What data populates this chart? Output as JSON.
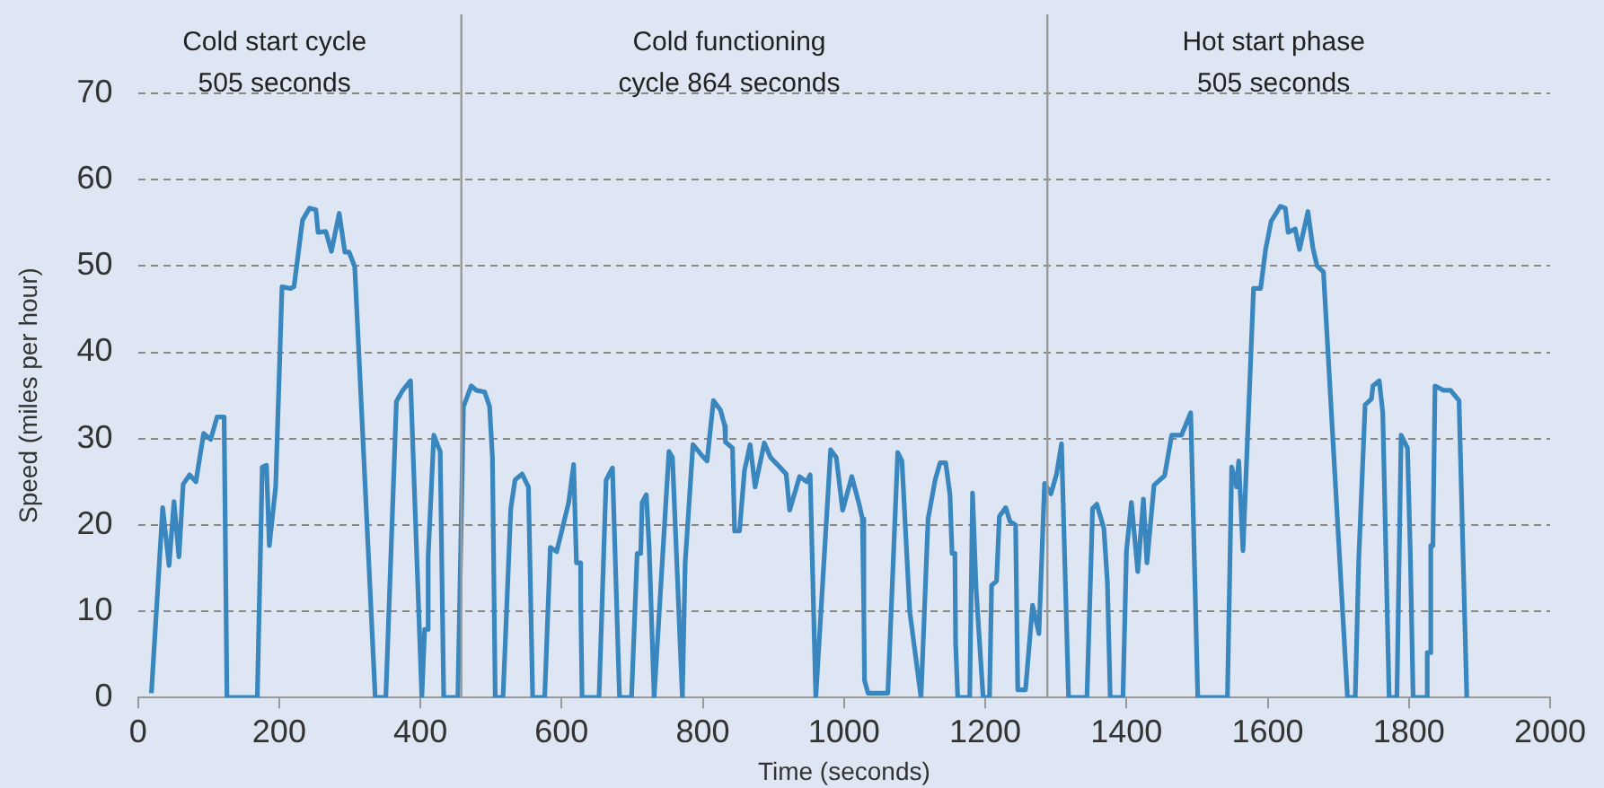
{
  "chart_data": {
    "type": "line",
    "xlabel": "Time (seconds)",
    "ylabel": "Speed (miles per hour)",
    "xlim": [
      0,
      2000
    ],
    "xticks": [
      0,
      200,
      400,
      600,
      800,
      1000,
      1200,
      1400,
      1600,
      1800,
      2000
    ],
    "ylim": [
      0,
      70
    ],
    "yticks": [
      0,
      10,
      20,
      30,
      40,
      50,
      60,
      70
    ],
    "grid": "y",
    "legend": false,
    "marker": "none",
    "line_style": "solid",
    "ref_lines": [
      {
        "axis": "x",
        "value": 458,
        "color": "#9a9a9a"
      },
      {
        "axis": "x",
        "value": 1288,
        "color": "#9a9a9a"
      }
    ],
    "annotations": [
      "Cold start cycle\n505 seconds",
      "Cold functioning\ncycle 864 seconds",
      "Hot start phase\n505 seconds"
    ],
    "series": [
      {
        "color": "#3a87c0",
        "x": [
          19,
          35,
          44,
          51,
          58,
          64,
          73,
          82,
          93,
          103,
          112,
          122,
          126,
          169,
          176,
          182,
          186,
          195,
          204,
          216,
          221,
          233,
          243,
          252,
          255,
          266,
          274,
          285,
          293,
          299,
          307,
          336,
          351,
          366,
          375,
          386,
          402,
          406,
          411,
          411,
          419,
          428,
          433,
          453,
          461,
          472,
          479,
          491,
          498,
          502,
          506,
          517,
          528,
          534,
          544,
          553,
          559,
          576,
          584,
          593,
          610,
          617,
          621,
          627,
          627,
          629,
          653,
          663,
          672,
          682,
          699,
          707,
          712,
          714,
          720,
          724,
          731,
          752,
          757,
          771,
          775,
          786,
          798,
          806,
          815,
          825,
          831,
          832,
          842,
          845,
          852,
          859,
          867,
          874,
          887,
          896,
          909,
          918,
          923,
          937,
          947,
          952,
          960,
          981,
          989,
          998,
          1011,
          1022,
          1026,
          1028,
          1029,
          1034,
          1062,
          1076,
          1082,
          1093,
          1109,
          1119,
          1129,
          1136,
          1144,
          1150,
          1153,
          1157,
          1158,
          1161,
          1178,
          1182,
          1187,
          1197,
          1206,
          1209,
          1216,
          1220,
          1229,
          1235,
          1243,
          1246,
          1257,
          1267,
          1276,
          1284,
          1293,
          1301,
          1308,
          1318,
          1344,
          1352,
          1358,
          1368,
          1373,
          1377,
          1395,
          1400,
          1407,
          1416,
          1424,
          1429,
          1439,
          1454,
          1464,
          1478,
          1491,
          1501,
          1543,
          1549,
          1556,
          1559,
          1565,
          1580,
          1590,
          1597,
          1605,
          1618,
          1625,
          1629,
          1639,
          1645,
          1657,
          1664,
          1670,
          1679,
          1713,
          1724,
          1729,
          1738,
          1747,
          1749,
          1758,
          1763,
          1772,
          1783,
          1789,
          1798,
          1802,
          1806,
          1826,
          1826,
          1830,
          1831,
          1834,
          1837,
          1849,
          1859,
          1871,
          1882
        ],
        "values": [
          0.5,
          22,
          15.3,
          22.7,
          16.3,
          24.7,
          25.8,
          25,
          30.6,
          29.9,
          32.5,
          32.5,
          0,
          0,
          26.7,
          26.9,
          17.6,
          24.4,
          47.6,
          47.4,
          47.6,
          55.3,
          56.7,
          56.5,
          53.9,
          54,
          51.7,
          56.1,
          51.6,
          51.6,
          49.9,
          0,
          0,
          34.3,
          35.6,
          36.7,
          0,
          7.9,
          7.9,
          16.3,
          30.4,
          28.5,
          0,
          0,
          33.7,
          36.1,
          35.6,
          35.4,
          33.7,
          27.8,
          0,
          0,
          21.9,
          25.2,
          25.9,
          24.4,
          0,
          0,
          17.4,
          16.9,
          22.6,
          27,
          15.6,
          15.6,
          11.1,
          0,
          0,
          25.2,
          26.6,
          0,
          0,
          16.7,
          16.7,
          22.6,
          23.5,
          17.4,
          0,
          28.5,
          27.8,
          0,
          15.6,
          29.3,
          28.1,
          27.4,
          34.4,
          33.3,
          31.5,
          29.6,
          28.9,
          19.3,
          19.3,
          26.3,
          29.3,
          24.4,
          29.5,
          27.8,
          26.7,
          25.9,
          21.7,
          25.6,
          25,
          25.8,
          0,
          28.7,
          27.8,
          21.7,
          25.6,
          22.2,
          20.7,
          10,
          2,
          0.5,
          0.5,
          28.4,
          27.4,
          10,
          0,
          20.7,
          25.2,
          27.2,
          27.2,
          23.5,
          16.7,
          16.7,
          6.4,
          0,
          0,
          23.7,
          12.6,
          0,
          0,
          13,
          13.5,
          21,
          22,
          20.4,
          20,
          0.9,
          0.9,
          10.7,
          7.4,
          24.8,
          23.6,
          25.9,
          29.4,
          0,
          0,
          21.9,
          22.4,
          19.6,
          13.3,
          0,
          0,
          17,
          22.6,
          14.6,
          23,
          15.6,
          24.6,
          25.7,
          30.4,
          30.4,
          33,
          0,
          0,
          26.7,
          24.4,
          27.4,
          17,
          47.4,
          47.4,
          51.9,
          55.2,
          56.9,
          56.7,
          53.9,
          54.3,
          51.9,
          56.3,
          52.1,
          50,
          49.3,
          0,
          0,
          16,
          33.9,
          34.6,
          36.1,
          36.7,
          33,
          0,
          0,
          30.4,
          28.9,
          16.7,
          0,
          0,
          5.2,
          5.2,
          17.6,
          17.6,
          36.1,
          35.6,
          35.6,
          34.4,
          0
        ]
      }
    ]
  }
}
